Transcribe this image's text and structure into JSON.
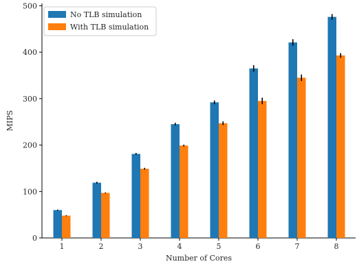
{
  "chart_data": {
    "type": "bar",
    "title": "",
    "xlabel": "Number of Cores",
    "ylabel": "MIPS",
    "categories": [
      "1",
      "2",
      "3",
      "4",
      "5",
      "6",
      "7",
      "8"
    ],
    "ylim": [
      0,
      505
    ],
    "yticks": [
      0,
      100,
      200,
      300,
      400,
      500
    ],
    "grid": false,
    "legend_position": "top-left",
    "series": [
      {
        "name": "No TLB simulation",
        "color": "#1f77b4",
        "values": [
          60,
          119,
          181,
          245,
          292,
          365,
          421,
          476
        ],
        "errors": [
          1,
          2,
          2,
          3,
          4,
          7,
          7,
          6
        ]
      },
      {
        "name": "With TLB simulation",
        "color": "#ff7f0e",
        "values": [
          48,
          97,
          149,
          199,
          247,
          295,
          345,
          393
        ],
        "errors": [
          1,
          1,
          2,
          2,
          4,
          7,
          7,
          5
        ]
      }
    ]
  }
}
